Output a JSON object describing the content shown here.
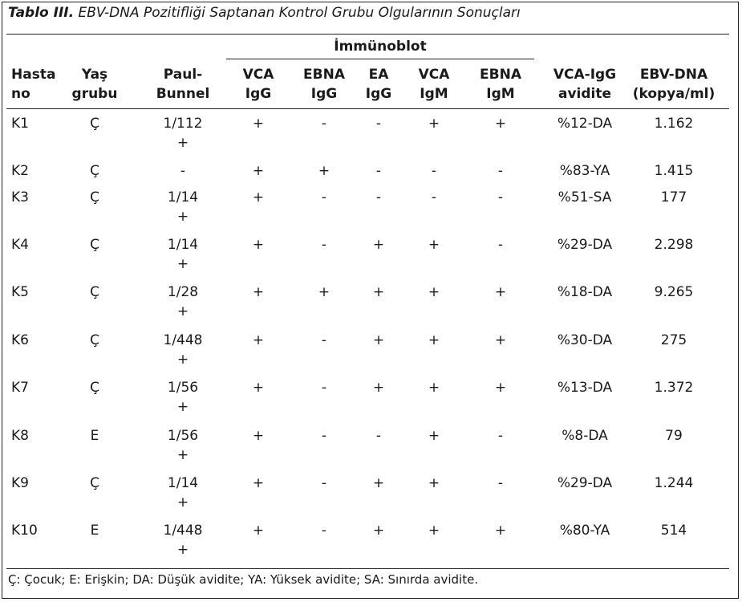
{
  "table": {
    "label": "Tablo III.",
    "caption": "EBV-DNA Pozitifliği Saptanan Kontrol Grubu Olgularının Sonuçları",
    "group_header": "İmmünoblot",
    "columns": [
      {
        "line1": "Hasta",
        "line2": "no"
      },
      {
        "line1": "Yaş",
        "line2": "grubu"
      },
      {
        "line1": "Paul-",
        "line2": "Bunnel"
      },
      {
        "line1": "VCA",
        "line2": "IgG"
      },
      {
        "line1": "EBNA",
        "line2": "IgG"
      },
      {
        "line1": "EA",
        "line2": "IgG"
      },
      {
        "line1": "VCA",
        "line2": "IgM"
      },
      {
        "line1": "EBNA",
        "line2": "IgM"
      },
      {
        "line1": "VCA-IgG",
        "line2": "avidite"
      },
      {
        "line1": "EBV-DNA",
        "line2": "(kopya/ml)"
      }
    ],
    "rows": [
      {
        "cells": [
          "K1",
          "Ç",
          "1/112",
          "+",
          "-",
          "-",
          "+",
          "+",
          "%12-DA",
          "1.162"
        ],
        "pb_suffix": "+"
      },
      {
        "cells": [
          "K2",
          "Ç",
          "-",
          "+",
          "+",
          "-",
          "-",
          "-",
          "%83-YA",
          "1.415"
        ],
        "pb_suffix": ""
      },
      {
        "cells": [
          "K3",
          "Ç",
          "1/14",
          "+",
          "-",
          "-",
          "-",
          "-",
          "%51-SA",
          "177"
        ],
        "pb_suffix": "+"
      },
      {
        "cells": [
          "K4",
          "Ç",
          "1/14",
          "+",
          "-",
          "+",
          "+",
          "-",
          "%29-DA",
          "2.298"
        ],
        "pb_suffix": "+"
      },
      {
        "cells": [
          "K5",
          "Ç",
          "1/28",
          "+",
          "+",
          "+",
          "+",
          "+",
          "%18-DA",
          "9.265"
        ],
        "pb_suffix": "+"
      },
      {
        "cells": [
          "K6",
          "Ç",
          "1/448",
          "+",
          "-",
          "+",
          "+",
          "+",
          "%30-DA",
          "275"
        ],
        "pb_suffix": "+"
      },
      {
        "cells": [
          "K7",
          "Ç",
          "1/56",
          "+",
          "-",
          "+",
          "+",
          "+",
          "%13-DA",
          "1.372"
        ],
        "pb_suffix": "+"
      },
      {
        "cells": [
          "K8",
          "E",
          "1/56",
          "+",
          "-",
          "-",
          "+",
          "-",
          "%8-DA",
          "79"
        ],
        "pb_suffix": "+"
      },
      {
        "cells": [
          "K9",
          "Ç",
          "1/14",
          "+",
          "-",
          "+",
          "+",
          "-",
          "%29-DA",
          "1.244"
        ],
        "pb_suffix": "+"
      },
      {
        "cells": [
          "K10",
          "E",
          "1/448",
          "+",
          "-",
          "+",
          "+",
          "+",
          "%80-YA",
          "514"
        ],
        "pb_suffix": "+"
      }
    ],
    "footnote": "Ç: Çocuk; E: Erişkin; DA: Düşük avidite; YA: Yüksek avidite; SA: Sınırda avidite."
  }
}
